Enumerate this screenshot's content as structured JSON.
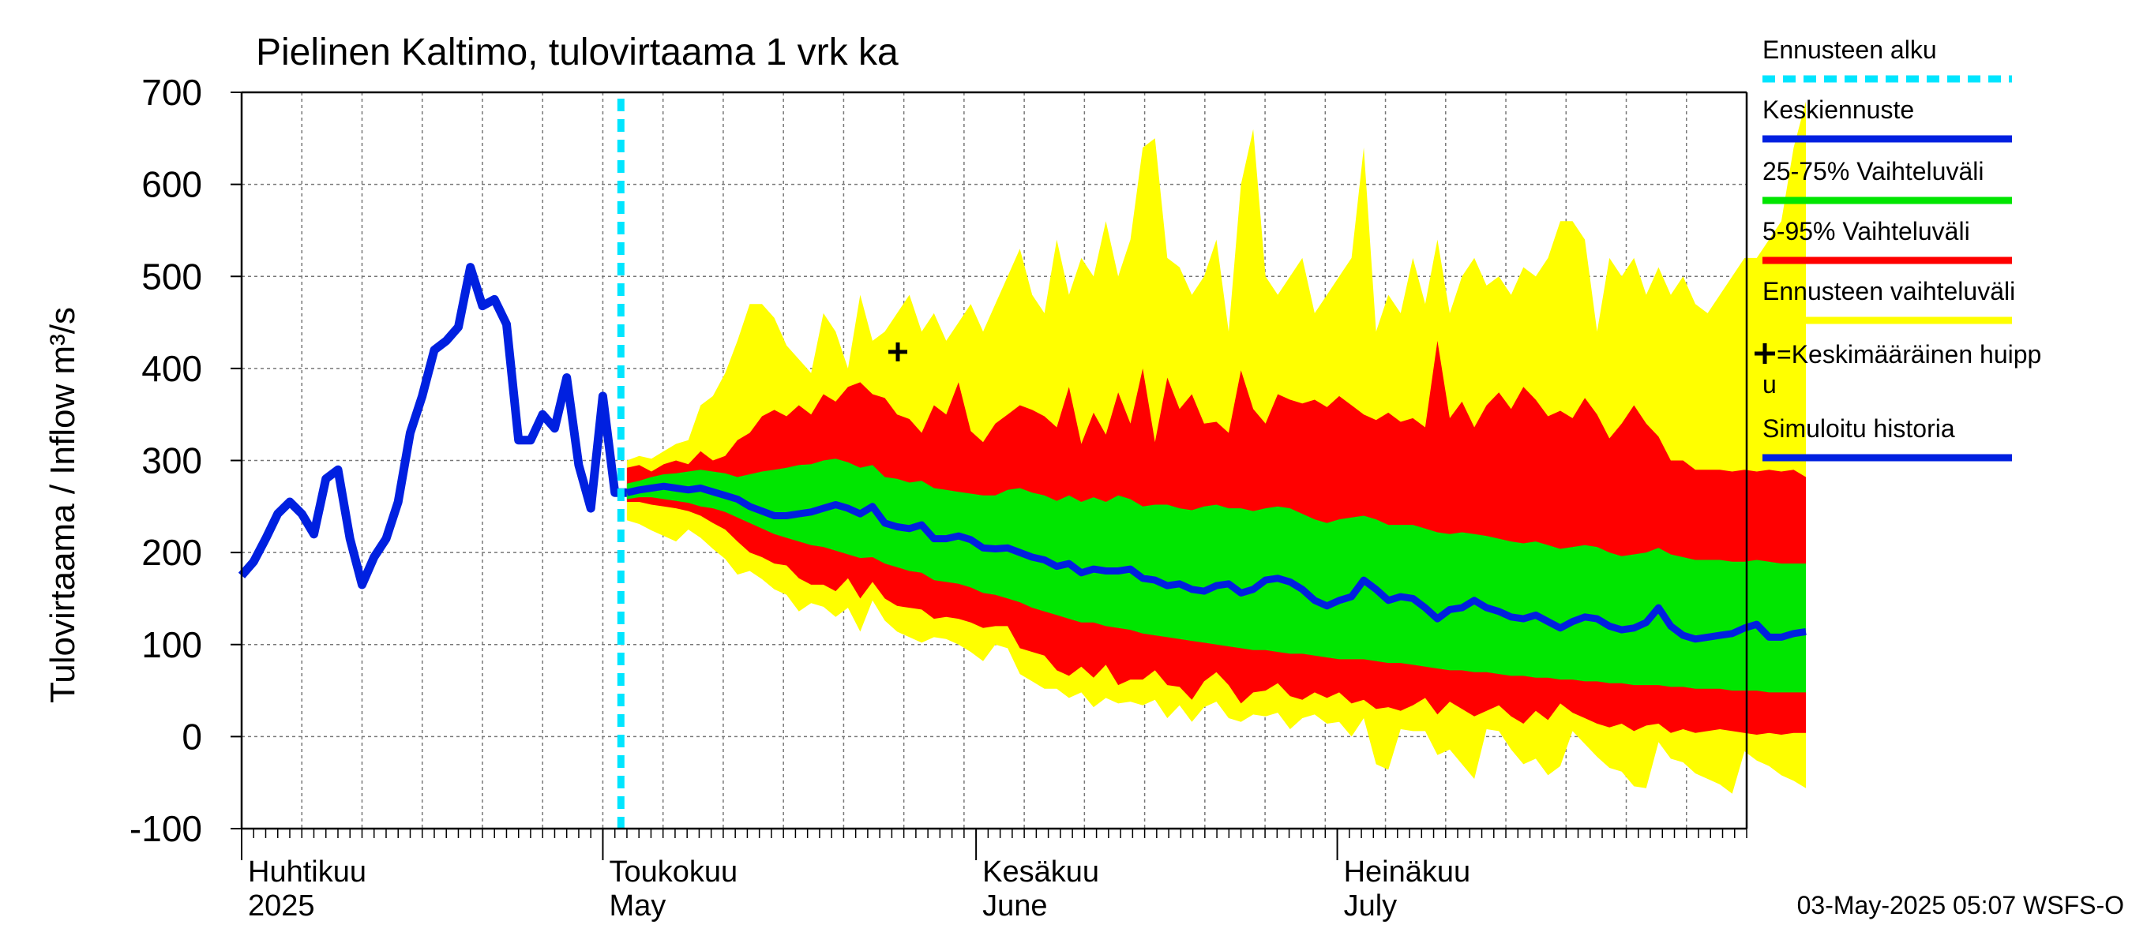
{
  "chart_data": {
    "type": "area",
    "title": "Pielinen Kaltimo, tulovirtaama 1 vrk ka",
    "ylabel": "Tulovirtaama / Inflow    m³/s",
    "ylim": [
      -100,
      700
    ],
    "yticks": [
      -100,
      0,
      100,
      200,
      300,
      400,
      500,
      600,
      700
    ],
    "x_range_days": [
      0,
      125
    ],
    "month_labels": [
      {
        "day": 0,
        "line1": "Huhtikuu",
        "line2": "2025"
      },
      {
        "day": 30,
        "line1": "Toukokuu",
        "line2": "May"
      },
      {
        "day": 61,
        "line1": "Kesäkuu",
        "line2": "June"
      },
      {
        "day": 91,
        "line1": "Heinäkuu",
        "line2": "July"
      }
    ],
    "forecast_start_day": 31.5,
    "mean_peak": {
      "day": 54.5,
      "value": 418
    },
    "history": {
      "day": [
        0,
        1,
        2,
        3,
        4,
        5,
        6,
        7,
        8,
        9,
        10,
        11,
        12,
        13,
        14,
        15,
        16,
        17,
        18,
        19,
        20,
        21,
        22,
        23,
        24,
        25,
        26,
        27,
        28,
        29,
        30,
        31,
        32
      ],
      "value": [
        175,
        190,
        215,
        242,
        255,
        242,
        220,
        280,
        290,
        215,
        165,
        195,
        215,
        255,
        330,
        370,
        420,
        430,
        445,
        510,
        468,
        475,
        448,
        322,
        322,
        350,
        335,
        390,
        295,
        248,
        370,
        265,
        265
      ]
    },
    "forecast_day_start": 32,
    "forecast_day_step": 1.02,
    "median": [
      265,
      268,
      270,
      272,
      270,
      268,
      270,
      266,
      262,
      258,
      250,
      245,
      240,
      240,
      242,
      244,
      248,
      252,
      248,
      242,
      250,
      232,
      228,
      226,
      230,
      215,
      215,
      218,
      214,
      205,
      204,
      205,
      200,
      195,
      192,
      185,
      188,
      178,
      182,
      180,
      180,
      182,
      172,
      170,
      164,
      166,
      160,
      158,
      164,
      166,
      156,
      160,
      170,
      172,
      168,
      160,
      148,
      142,
      148,
      152,
      170,
      160,
      148,
      152,
      150,
      140,
      128,
      138,
      140,
      148,
      140,
      136,
      130,
      128,
      132,
      125,
      118,
      125,
      130,
      128,
      120,
      116,
      118,
      124,
      140,
      120,
      110,
      106,
      108,
      110,
      112,
      118,
      122,
      108,
      108,
      112,
      114
    ],
    "band_25_75": {
      "upper": [
        275,
        278,
        282,
        285,
        286,
        288,
        290,
        288,
        286,
        282,
        285,
        288,
        290,
        292,
        295,
        296,
        300,
        302,
        298,
        292,
        295,
        282,
        280,
        276,
        278,
        270,
        268,
        266,
        264,
        262,
        262,
        268,
        270,
        265,
        262,
        256,
        262,
        255,
        260,
        255,
        262,
        258,
        250,
        252,
        252,
        248,
        246,
        250,
        252,
        248,
        248,
        245,
        248,
        250,
        248,
        242,
        236,
        232,
        236,
        238,
        240,
        236,
        230,
        230,
        230,
        226,
        222,
        220,
        222,
        220,
        218,
        215,
        212,
        210,
        212,
        208,
        204,
        206,
        208,
        206,
        200,
        196,
        198,
        200,
        205,
        198,
        195,
        192,
        192,
        192,
        190,
        190,
        192,
        190,
        188,
        188,
        188
      ],
      "lower": [
        258,
        260,
        260,
        258,
        256,
        254,
        250,
        248,
        244,
        238,
        232,
        226,
        220,
        216,
        212,
        208,
        206,
        202,
        198,
        194,
        195,
        188,
        184,
        180,
        178,
        170,
        168,
        166,
        162,
        156,
        154,
        150,
        146,
        140,
        136,
        132,
        128,
        124,
        124,
        120,
        118,
        116,
        112,
        110,
        108,
        106,
        104,
        102,
        100,
        98,
        96,
        94,
        94,
        92,
        90,
        90,
        88,
        86,
        84,
        84,
        84,
        82,
        80,
        80,
        78,
        76,
        74,
        72,
        72,
        70,
        70,
        68,
        66,
        66,
        64,
        64,
        62,
        62,
        60,
        60,
        58,
        58,
        56,
        56,
        56,
        54,
        54,
        52,
        52,
        52,
        50,
        50,
        50,
        48,
        48,
        48,
        48
      ]
    },
    "band_5_95": {
      "upper": [
        292,
        295,
        288,
        296,
        300,
        296,
        310,
        300,
        305,
        322,
        330,
        348,
        355,
        348,
        360,
        350,
        372,
        364,
        380,
        385,
        372,
        368,
        350,
        345,
        330,
        360,
        350,
        385,
        332,
        320,
        340,
        350,
        360,
        355,
        348,
        336,
        380,
        318,
        352,
        328,
        374,
        340,
        400,
        320,
        390,
        356,
        372,
        340,
        342,
        330,
        398,
        356,
        340,
        372,
        366,
        362,
        366,
        358,
        370,
        360,
        350,
        344,
        352,
        342,
        346,
        336,
        430,
        346,
        364,
        336,
        360,
        374,
        356,
        380,
        366,
        348,
        354,
        346,
        368,
        350,
        324,
        340,
        360,
        340,
        326,
        300,
        300,
        290,
        290,
        290,
        288,
        290,
        288,
        290,
        288,
        290,
        282
      ],
      "lower": [
        255,
        255,
        252,
        250,
        248,
        245,
        240,
        232,
        225,
        212,
        200,
        195,
        188,
        186,
        172,
        165,
        165,
        158,
        172,
        150,
        168,
        150,
        142,
        140,
        138,
        128,
        130,
        128,
        124,
        118,
        120,
        120,
        96,
        92,
        88,
        72,
        66,
        76,
        64,
        78,
        56,
        62,
        62,
        72,
        56,
        54,
        40,
        60,
        70,
        56,
        36,
        48,
        50,
        58,
        44,
        40,
        48,
        42,
        48,
        36,
        40,
        30,
        32,
        28,
        34,
        42,
        24,
        38,
        30,
        22,
        28,
        34,
        22,
        14,
        28,
        18,
        36,
        26,
        20,
        14,
        10,
        14,
        6,
        12,
        14,
        4,
        8,
        4,
        6,
        8,
        6,
        4,
        2,
        4,
        2,
        4,
        4
      ]
    },
    "band_envelope": {
      "upper": [
        300,
        305,
        302,
        310,
        318,
        322,
        360,
        370,
        395,
        430,
        470,
        470,
        455,
        425,
        410,
        395,
        460,
        440,
        400,
        480,
        430,
        440,
        460,
        480,
        440,
        460,
        430,
        450,
        470,
        440,
        470,
        500,
        530,
        480,
        460,
        540,
        480,
        520,
        500,
        560,
        500,
        540,
        640,
        650,
        520,
        510,
        480,
        500,
        540,
        440,
        600,
        660,
        500,
        480,
        500,
        520,
        460,
        480,
        500,
        520,
        640,
        440,
        480,
        460,
        520,
        470,
        540,
        460,
        500,
        520,
        490,
        500,
        480,
        510,
        500,
        520,
        560,
        560,
        540,
        440,
        520,
        500,
        520,
        480,
        510,
        480,
        500,
        470,
        460,
        480,
        500,
        520,
        520,
        540,
        560,
        640,
        690
      ]
    },
    "legend": [
      {
        "label": "Ennusteen alku",
        "color": "#00e5ff"
      },
      {
        "label": "Keskiennuste",
        "color": "#0020e0"
      },
      {
        "label": "25-75% Vaihteluväli",
        "color": "#00e600"
      },
      {
        "label": "5-95% Vaihteluväli",
        "color": "#ff0000"
      },
      {
        "label": "Ennusteen vaihteluväli",
        "color": "#ffff00"
      },
      {
        "label": "=Keskimääräinen huipp",
        "label2": "u",
        "color": "#000000"
      },
      {
        "label": "Simuloitu historia",
        "color": "#0020e0"
      }
    ],
    "footer": "03-May-2025 05:07 WSFS-O"
  }
}
